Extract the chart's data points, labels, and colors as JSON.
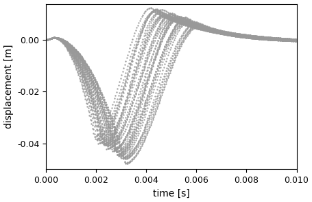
{
  "xlabel": "time [s]",
  "ylabel": "displacement [m]",
  "xlim": [
    0.0,
    0.01
  ],
  "ylim": [
    -0.05,
    0.014
  ],
  "xticks": [
    0.0,
    0.002,
    0.004,
    0.006,
    0.008,
    0.01
  ],
  "yticks": [
    0.0,
    -0.02,
    -0.04
  ],
  "color": "#999999",
  "alpha": 0.85,
  "marker_size": 1.5,
  "n_trajectories": 35,
  "n_points": 250,
  "figsize": [
    4.56,
    2.94
  ],
  "dpi": 100
}
